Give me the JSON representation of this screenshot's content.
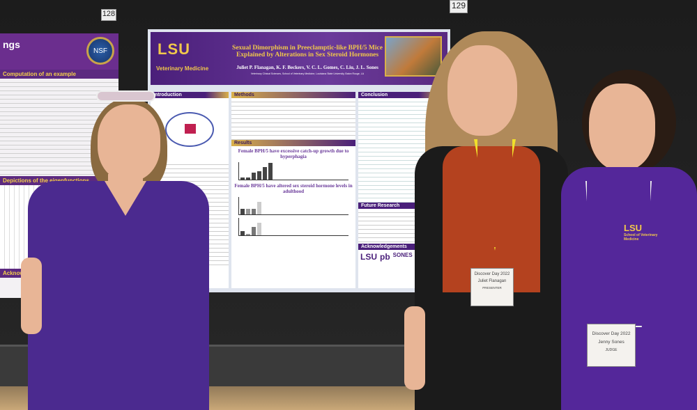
{
  "booth_numbers": {
    "left": "128",
    "right": "129"
  },
  "left_poster": {
    "title_fragment": "ngs",
    "logo": "NSF",
    "sections": [
      "Computation of an example",
      "Depictions of the eigenfunctions",
      "Acknowledgements"
    ]
  },
  "main_poster": {
    "logo_main": "LSU",
    "logo_sub": "Veterinary Medicine",
    "title": "Sexual Dimorphism in Preeclamptic-like BPH/5 Mice Explained by Alterations in Sex Steroid Hormones",
    "authors": "Juliet P. Flanagan, K. F. Beckers, V. C. L. Gomes, C. Liu, J. L. Sones",
    "affiliation": "Veterinary Clinical Sciences, School of Veterinary Medicine, Louisiana State University, Baton Rouge, LA",
    "sections": {
      "introduction": "Introduction",
      "methods": "Methods",
      "results": "Results",
      "conclusion": "Conclusion",
      "future": "Future Research",
      "ack": "Acknowledgements"
    },
    "result_headings": [
      "Female BPH/5 have excessive catch-up growth due to hyperphagia",
      "Female BPH/5 have altered sex steroid hormone levels in adulthood"
    ],
    "ack_logos": [
      "LSU",
      "pb",
      "SONES"
    ]
  },
  "people": [
    {
      "role": "attendee",
      "shirt": "#4b2a8f"
    },
    {
      "badge_event": "Discover Day 2022",
      "badge_name": "Juliet Flanagan",
      "badge_role": "PRESENTER",
      "shirt": "#b4421f"
    },
    {
      "badge_event": "Discover Day 2022",
      "badge_name": "Jenny Sones",
      "badge_role": "JUDGE",
      "shirt": "#54279a",
      "shirt_logo": "LSU",
      "shirt_logo_sub": "School of Veterinary Medicine"
    }
  ]
}
